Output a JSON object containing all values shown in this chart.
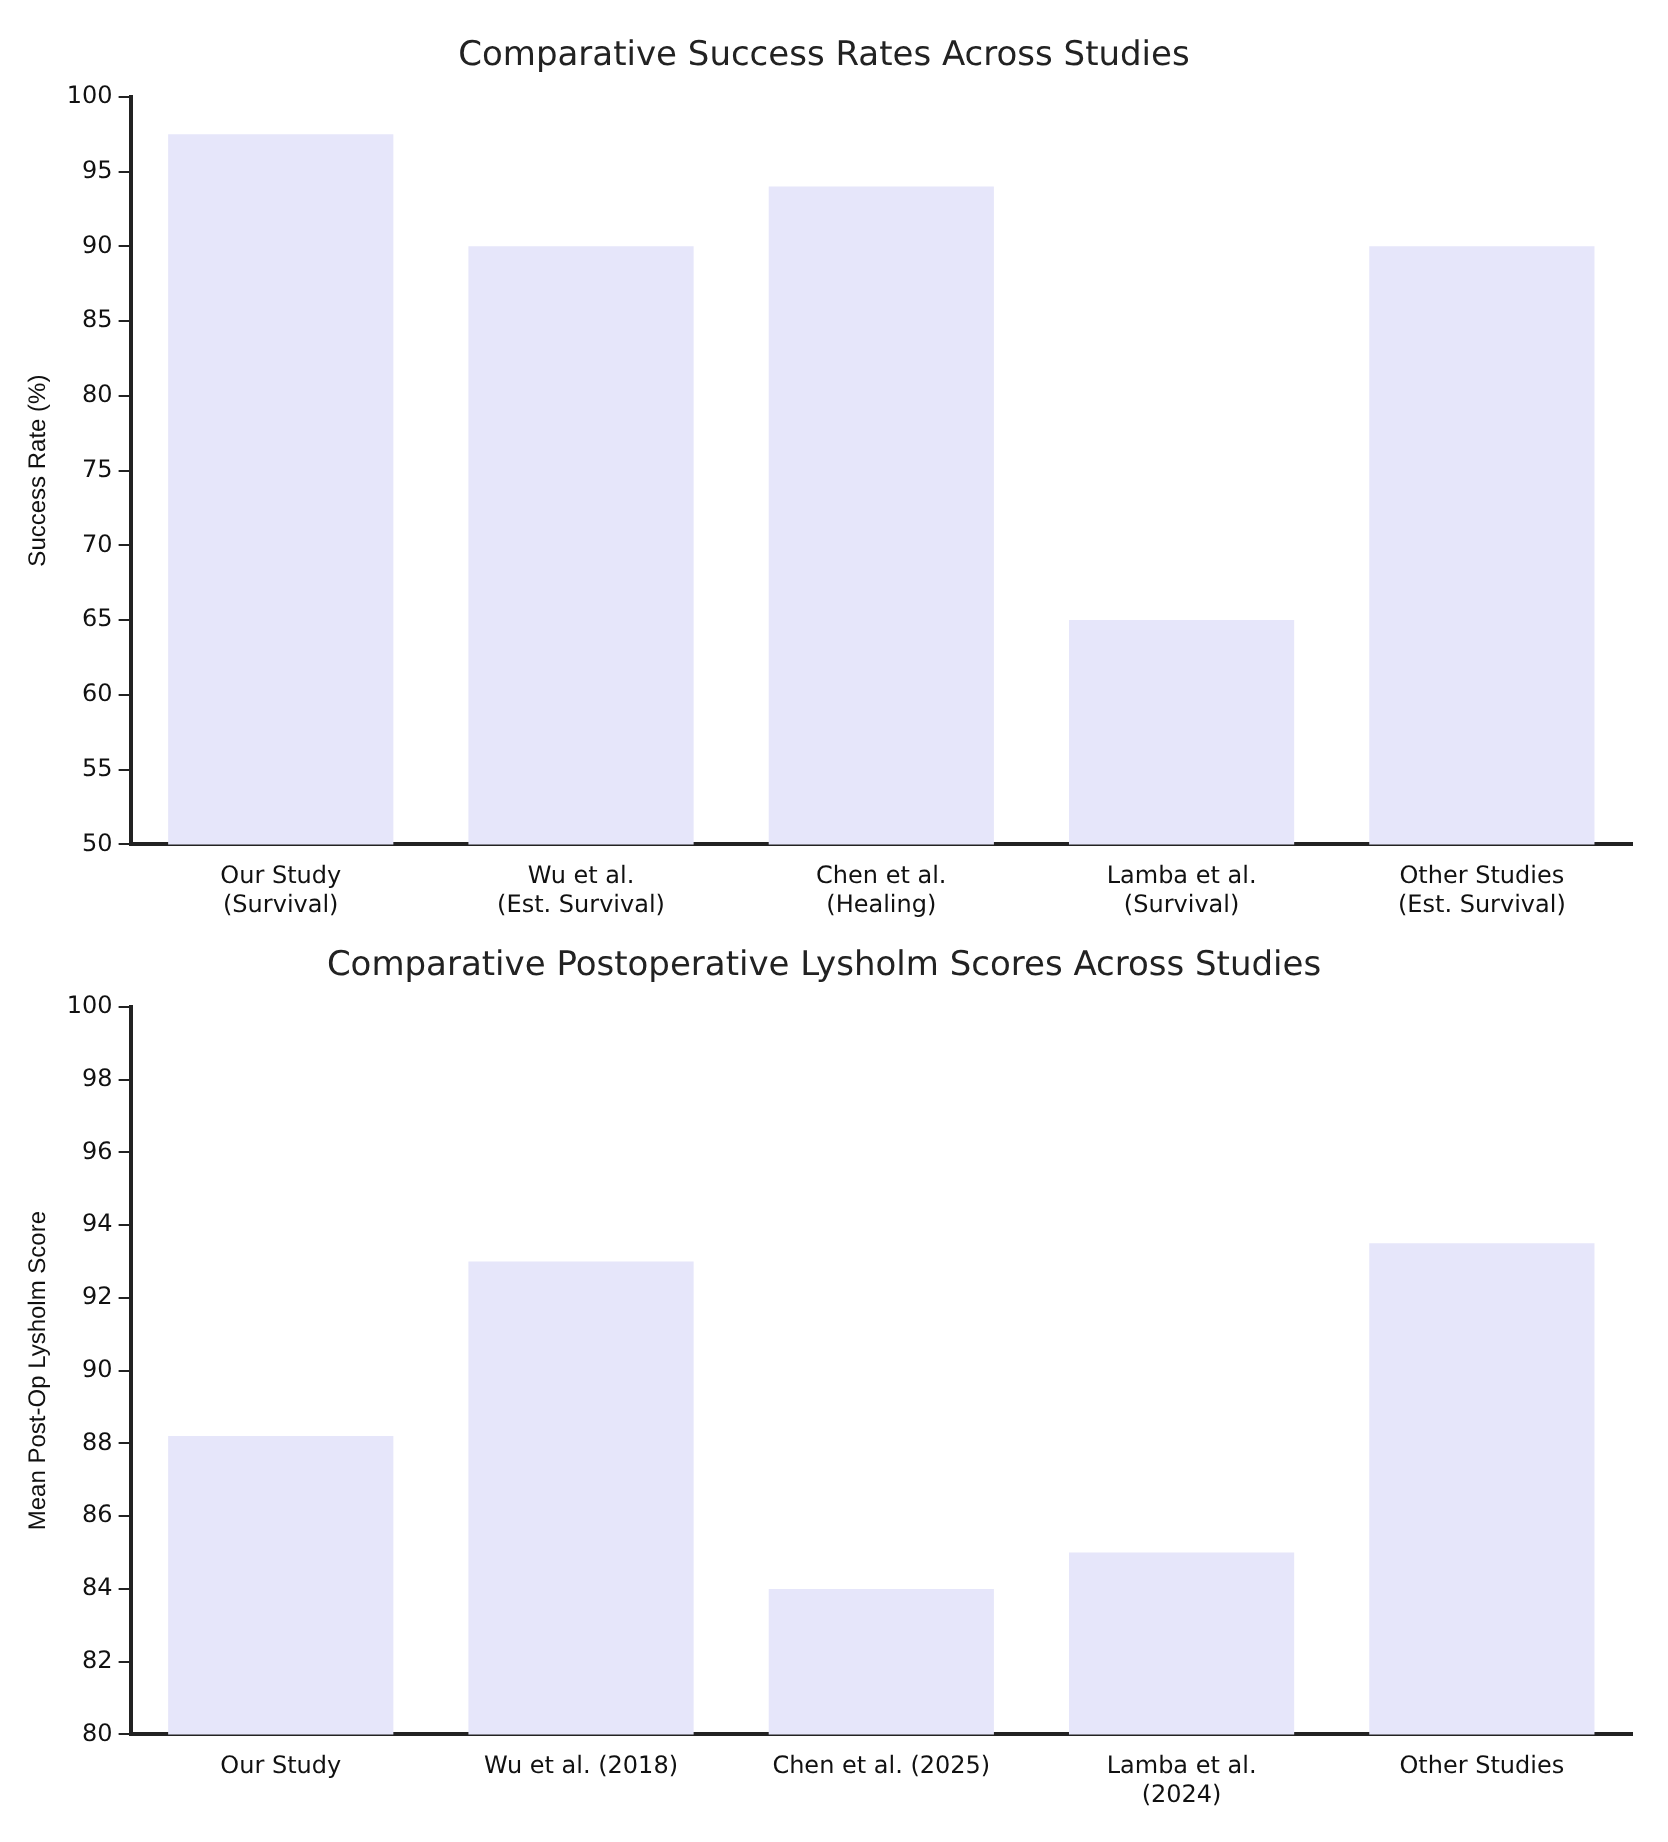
{
  "chart_data": [
    {
      "type": "bar",
      "title": "Comparative Success Rates Across Studies",
      "ylabel": "Success Rate (%)",
      "categories": [
        "Our Study (Survival)",
        "Wu et al. (Est. Survival)",
        "Chen et al. (Healing)",
        "Lamba et al. (Survival)",
        "Other Studies (Est. Survival)"
      ],
      "values": [
        97.5,
        90,
        94,
        65,
        90
      ],
      "color": "#e6e6fa",
      "ylim": [
        50,
        100
      ],
      "yticks": [
        50,
        55,
        60,
        65,
        70,
        75,
        80,
        85,
        90,
        95,
        100
      ],
      "grid": false,
      "legend": false
    },
    {
      "type": "bar",
      "title": "Comparative Postoperative Lysholm Scores Across Studies",
      "ylabel": "Mean Post-Op Lysholm Score",
      "categories": [
        "Our Study",
        "Wu et al. (2018)",
        "Chen et al. (2025)",
        "Lamba et al. (2024)",
        "Other Studies"
      ],
      "values": [
        88.2,
        93,
        84,
        85,
        93.5
      ],
      "color": "#e6e6fa",
      "ylim": [
        80,
        100
      ],
      "yticks": [
        80,
        82,
        84,
        86,
        88,
        90,
        92,
        94,
        96,
        98,
        100
      ],
      "grid": false,
      "legend": false
    }
  ]
}
